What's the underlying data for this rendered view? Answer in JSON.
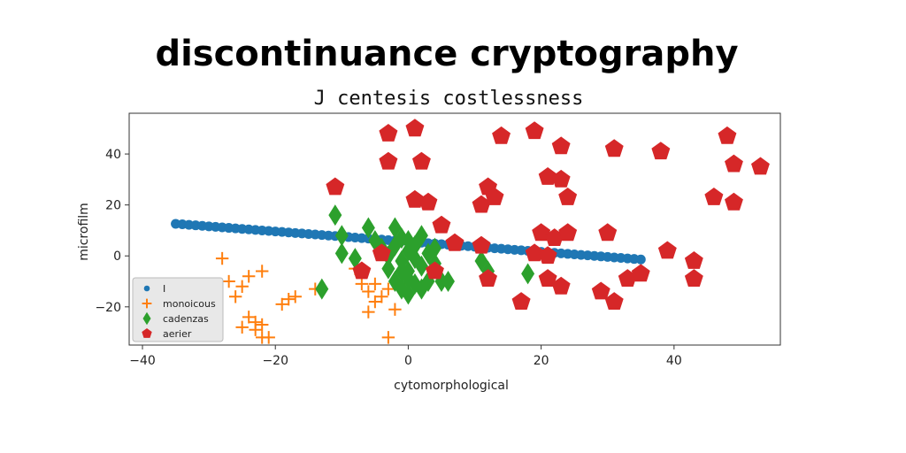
{
  "chart_data": {
    "type": "scatter",
    "title": "discontinuance cryptography",
    "subtitle": "J centesis costlessness",
    "xlabel": "cytomorphological",
    "ylabel": "microfilm",
    "xlim": [
      -42,
      56
    ],
    "ylim": [
      -35,
      56
    ],
    "xticks": [
      -40,
      -20,
      0,
      20,
      40
    ],
    "yticks": [
      -20,
      0,
      20,
      40
    ],
    "grid": false,
    "legend_position": "lower-left",
    "series": [
      {
        "name": "I",
        "marker": "circle",
        "color": "#1f77b4",
        "points": [
          [
            -35,
            12.6
          ],
          [
            -34,
            12.4
          ],
          [
            -33,
            12.2
          ],
          [
            -32,
            12.0
          ],
          [
            -31,
            11.8
          ],
          [
            -30,
            11.6
          ],
          [
            -29,
            11.4
          ],
          [
            -28,
            11.2
          ],
          [
            -27,
            11.0
          ],
          [
            -26,
            10.8
          ],
          [
            -25,
            10.6
          ],
          [
            -24,
            10.4
          ],
          [
            -23,
            10.2
          ],
          [
            -22,
            10.0
          ],
          [
            -21,
            9.8
          ],
          [
            -20,
            9.6
          ],
          [
            -19,
            9.4
          ],
          [
            -18,
            9.2
          ],
          [
            -17,
            9.0
          ],
          [
            -16,
            8.8
          ],
          [
            -15,
            8.6
          ],
          [
            -14,
            8.4
          ],
          [
            -13,
            8.2
          ],
          [
            -12,
            8.0
          ],
          [
            -11,
            7.8
          ],
          [
            -10,
            7.6
          ],
          [
            -9,
            7.4
          ],
          [
            -8,
            7.2
          ],
          [
            -7,
            7.0
          ],
          [
            -6,
            6.8
          ],
          [
            -5,
            6.6
          ],
          [
            -4,
            6.4
          ],
          [
            -3,
            6.2
          ],
          [
            -2,
            6.0
          ],
          [
            -1,
            5.8
          ],
          [
            0,
            5.6
          ],
          [
            1,
            5.4
          ],
          [
            2,
            5.2
          ],
          [
            3,
            5.0
          ],
          [
            4,
            4.8
          ],
          [
            5,
            4.6
          ],
          [
            6,
            4.4
          ],
          [
            7,
            4.2
          ],
          [
            8,
            4.0
          ],
          [
            9,
            3.8
          ],
          [
            10,
            3.6
          ],
          [
            11,
            3.4
          ],
          [
            12,
            3.2
          ],
          [
            13,
            3.0
          ],
          [
            14,
            2.8
          ],
          [
            15,
            2.6
          ],
          [
            16,
            2.4
          ],
          [
            17,
            2.2
          ],
          [
            18,
            2.0
          ],
          [
            19,
            1.8
          ],
          [
            20,
            1.6
          ],
          [
            21,
            1.4
          ],
          [
            22,
            1.2
          ],
          [
            23,
            1.0
          ],
          [
            24,
            0.8
          ],
          [
            25,
            0.6
          ],
          [
            26,
            0.4
          ],
          [
            27,
            0.2
          ],
          [
            28,
            0.0
          ],
          [
            29,
            -0.2
          ],
          [
            30,
            -0.4
          ],
          [
            31,
            -0.6
          ],
          [
            32,
            -0.8
          ],
          [
            33,
            -1.0
          ],
          [
            34,
            -1.2
          ],
          [
            35,
            -1.4
          ]
        ]
      },
      {
        "name": "monoicous",
        "marker": "plus",
        "color": "#ff7f0e",
        "points": [
          [
            -28,
            -1
          ],
          [
            -27,
            -10
          ],
          [
            -26,
            -16
          ],
          [
            -25,
            -12
          ],
          [
            -24,
            -8
          ],
          [
            -22,
            -6
          ],
          [
            -25,
            -28
          ],
          [
            -24,
            -24
          ],
          [
            -23,
            -29
          ],
          [
            -22,
            -32
          ],
          [
            -23,
            -26
          ],
          [
            -22,
            -27
          ],
          [
            -21,
            -32
          ],
          [
            -19,
            -19
          ],
          [
            -18,
            -17
          ],
          [
            -17,
            -16
          ],
          [
            -14,
            -13
          ],
          [
            -7,
            -11
          ],
          [
            -6,
            -14
          ],
          [
            -5,
            -11
          ],
          [
            -6,
            -22
          ],
          [
            -5,
            -18
          ],
          [
            -4,
            -16
          ],
          [
            -3,
            -13
          ],
          [
            -2,
            -21
          ],
          [
            -3,
            -32
          ],
          [
            -8,
            -5
          ],
          [
            -1,
            -11
          ]
        ]
      },
      {
        "name": "cadenzas",
        "marker": "diamond",
        "color": "#2ca02c",
        "points": [
          [
            -11,
            16
          ],
          [
            -10,
            8
          ],
          [
            -10,
            1
          ],
          [
            -13,
            -13
          ],
          [
            -8,
            -1
          ],
          [
            -6,
            11
          ],
          [
            -5,
            6
          ],
          [
            -4,
            3
          ],
          [
            -3,
            0
          ],
          [
            -2,
            11
          ],
          [
            -2,
            4
          ],
          [
            -1,
            7
          ],
          [
            -1,
            -2
          ],
          [
            0,
            6
          ],
          [
            0,
            2
          ],
          [
            0,
            -6
          ],
          [
            1,
            4
          ],
          [
            1,
            -1
          ],
          [
            2,
            8
          ],
          [
            2,
            -4
          ],
          [
            3,
            1
          ],
          [
            -2,
            -10
          ],
          [
            -1,
            -13
          ],
          [
            0,
            -15
          ],
          [
            1,
            -11
          ],
          [
            2,
            -13
          ],
          [
            3,
            -10
          ],
          [
            4,
            -3
          ],
          [
            5,
            -10
          ],
          [
            4,
            3
          ],
          [
            6,
            -10
          ],
          [
            -3,
            -5
          ],
          [
            11,
            -2
          ],
          [
            12,
            -6
          ],
          [
            18,
            -7
          ],
          [
            -1,
            -6
          ],
          [
            0,
            -9
          ]
        ]
      },
      {
        "name": "aerier",
        "marker": "pentagon",
        "color": "#d62728",
        "points": [
          [
            -3,
            48
          ],
          [
            1,
            50
          ],
          [
            -3,
            37
          ],
          [
            2,
            37
          ],
          [
            -11,
            27
          ],
          [
            1,
            22
          ],
          [
            3,
            21
          ],
          [
            5,
            12
          ],
          [
            7,
            5
          ],
          [
            4,
            -6
          ],
          [
            -7,
            -6
          ],
          [
            -4,
            1
          ],
          [
            11,
            4
          ],
          [
            12,
            -9
          ],
          [
            11,
            20
          ],
          [
            12,
            27
          ],
          [
            13,
            23
          ],
          [
            14,
            47
          ],
          [
            19,
            49
          ],
          [
            21,
            31
          ],
          [
            23,
            43
          ],
          [
            23,
            30
          ],
          [
            24,
            23
          ],
          [
            20,
            9
          ],
          [
            22,
            7
          ],
          [
            24,
            9
          ],
          [
            19,
            1
          ],
          [
            17,
            -18
          ],
          [
            21,
            -9
          ],
          [
            23,
            -12
          ],
          [
            29,
            -14
          ],
          [
            31,
            -18
          ],
          [
            30,
            9
          ],
          [
            31,
            42
          ],
          [
            33,
            -9
          ],
          [
            35,
            -7
          ],
          [
            38,
            41
          ],
          [
            39,
            2
          ],
          [
            43,
            -2
          ],
          [
            43,
            -9
          ],
          [
            46,
            23
          ],
          [
            48,
            47
          ],
          [
            49,
            36
          ],
          [
            49,
            21
          ],
          [
            53,
            35
          ],
          [
            21,
            0
          ]
        ]
      }
    ]
  }
}
